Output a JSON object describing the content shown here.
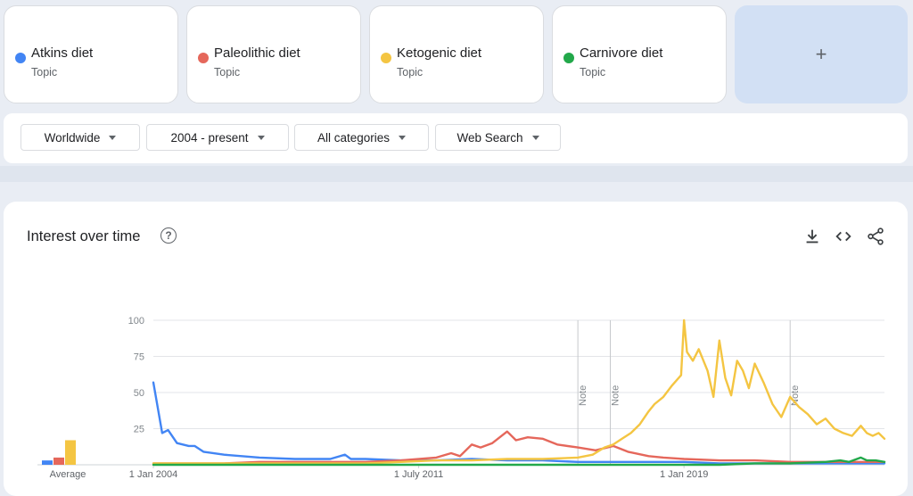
{
  "terms": [
    {
      "name": "Atkins diet",
      "type": "Topic",
      "color": "#4285f4"
    },
    {
      "name": "Paleolithic diet",
      "type": "Topic",
      "color": "#e5675b"
    },
    {
      "name": "Ketogenic diet",
      "type": "Topic",
      "color": "#f4c542"
    },
    {
      "name": "Carnivore diet",
      "type": "Topic",
      "color": "#22a84a"
    }
  ],
  "add_button": "+",
  "filters": {
    "region": "Worldwide",
    "time_range": "2004 - present",
    "category": "All categories",
    "search_type": "Web Search"
  },
  "chart_header": {
    "title": "Interest over time",
    "help_symbol": "?",
    "icons": [
      "download-icon",
      "embed-code-icon",
      "share-icon"
    ]
  },
  "chart_data": {
    "type": "line",
    "title": "Interest over time",
    "xlabel": "",
    "ylabel": "",
    "ylim": [
      0,
      100
    ],
    "y_ticks": [
      25,
      50,
      75,
      100
    ],
    "x_range": [
      "2004-01",
      "2024-09"
    ],
    "x_tick_labels": [
      {
        "date": "2004-01",
        "label": "1 Jan 2004"
      },
      {
        "date": "2011-07",
        "label": "1 July 2011"
      },
      {
        "date": "2019-01",
        "label": "1 Jan 2019"
      }
    ],
    "notes": [
      {
        "date": "2016-01",
        "label": "Note"
      },
      {
        "date": "2016-12",
        "label": "Note"
      },
      {
        "date": "2022-01",
        "label": "Note"
      }
    ],
    "grid": true,
    "average_label": "Average",
    "averages": [
      {
        "name": "Atkins diet",
        "value": 3
      },
      {
        "name": "Paleolithic diet",
        "value": 5
      },
      {
        "name": "Ketogenic diet",
        "value": 17
      },
      {
        "name": "Carnivore diet",
        "value": 0
      }
    ],
    "series": [
      {
        "name": "Atkins diet",
        "color": "#4285f4",
        "points": [
          [
            "2004-01",
            57
          ],
          [
            "2004-04",
            22
          ],
          [
            "2004-06",
            24
          ],
          [
            "2004-09",
            15
          ],
          [
            "2005-01",
            13
          ],
          [
            "2005-03",
            13
          ],
          [
            "2005-06",
            9
          ],
          [
            "2006-01",
            7
          ],
          [
            "2007-01",
            5
          ],
          [
            "2008-01",
            4
          ],
          [
            "2009-01",
            4
          ],
          [
            "2009-06",
            7
          ],
          [
            "2009-08",
            4
          ],
          [
            "2010-01",
            4
          ],
          [
            "2011-01",
            3
          ],
          [
            "2012-01",
            3
          ],
          [
            "2013-01",
            4
          ],
          [
            "2014-01",
            3
          ],
          [
            "2015-01",
            3
          ],
          [
            "2016-01",
            2
          ],
          [
            "2017-01",
            2
          ],
          [
            "2018-01",
            2
          ],
          [
            "2019-01",
            2
          ],
          [
            "2020-01",
            1
          ],
          [
            "2021-01",
            1
          ],
          [
            "2022-01",
            1
          ],
          [
            "2023-01",
            1
          ],
          [
            "2024-01",
            1
          ],
          [
            "2024-09",
            1
          ]
        ]
      },
      {
        "name": "Paleolithic diet",
        "color": "#e5675b",
        "points": [
          [
            "2004-01",
            1
          ],
          [
            "2005-01",
            1
          ],
          [
            "2006-01",
            1
          ],
          [
            "2007-01",
            2
          ],
          [
            "2008-01",
            2
          ],
          [
            "2009-01",
            2
          ],
          [
            "2010-01",
            2
          ],
          [
            "2011-01",
            3
          ],
          [
            "2012-01",
            5
          ],
          [
            "2012-06",
            8
          ],
          [
            "2012-09",
            6
          ],
          [
            "2013-01",
            14
          ],
          [
            "2013-04",
            12
          ],
          [
            "2013-08",
            15
          ],
          [
            "2014-01",
            23
          ],
          [
            "2014-04",
            17
          ],
          [
            "2014-08",
            19
          ],
          [
            "2015-01",
            18
          ],
          [
            "2015-06",
            14
          ],
          [
            "2016-01",
            12
          ],
          [
            "2016-07",
            10
          ],
          [
            "2017-01",
            13
          ],
          [
            "2017-06",
            9
          ],
          [
            "2018-01",
            6
          ],
          [
            "2018-06",
            5
          ],
          [
            "2019-01",
            4
          ],
          [
            "2020-01",
            3
          ],
          [
            "2021-01",
            3
          ],
          [
            "2022-01",
            2
          ],
          [
            "2023-01",
            2
          ],
          [
            "2024-01",
            2
          ],
          [
            "2024-09",
            2
          ]
        ]
      },
      {
        "name": "Ketogenic diet",
        "color": "#f4c542",
        "points": [
          [
            "2004-01",
            1
          ],
          [
            "2006-01",
            1
          ],
          [
            "2008-01",
            1
          ],
          [
            "2010-01",
            1
          ],
          [
            "2011-01",
            2
          ],
          [
            "2012-01",
            3
          ],
          [
            "2013-01",
            3
          ],
          [
            "2014-01",
            4
          ],
          [
            "2015-01",
            4
          ],
          [
            "2016-01",
            5
          ],
          [
            "2016-06",
            7
          ],
          [
            "2016-10",
            12
          ],
          [
            "2017-01",
            14
          ],
          [
            "2017-04",
            18
          ],
          [
            "2017-07",
            22
          ],
          [
            "2017-10",
            28
          ],
          [
            "2018-01",
            37
          ],
          [
            "2018-03",
            42
          ],
          [
            "2018-06",
            47
          ],
          [
            "2018-09",
            55
          ],
          [
            "2018-12",
            62
          ],
          [
            "2019-01",
            100
          ],
          [
            "2019-02",
            78
          ],
          [
            "2019-04",
            72
          ],
          [
            "2019-06",
            80
          ],
          [
            "2019-09",
            65
          ],
          [
            "2019-11",
            47
          ],
          [
            "2020-01",
            86
          ],
          [
            "2020-03",
            60
          ],
          [
            "2020-05",
            48
          ],
          [
            "2020-07",
            72
          ],
          [
            "2020-09",
            65
          ],
          [
            "2020-11",
            53
          ],
          [
            "2021-01",
            70
          ],
          [
            "2021-04",
            57
          ],
          [
            "2021-07",
            42
          ],
          [
            "2021-10",
            33
          ],
          [
            "2022-01",
            47
          ],
          [
            "2022-04",
            40
          ],
          [
            "2022-07",
            35
          ],
          [
            "2022-10",
            28
          ],
          [
            "2023-01",
            32
          ],
          [
            "2023-04",
            25
          ],
          [
            "2023-07",
            22
          ],
          [
            "2023-10",
            20
          ],
          [
            "2024-01",
            27
          ],
          [
            "2024-03",
            22
          ],
          [
            "2024-05",
            20
          ],
          [
            "2024-07",
            22
          ],
          [
            "2024-09",
            18
          ]
        ]
      },
      {
        "name": "Carnivore diet",
        "color": "#22a84a",
        "points": [
          [
            "2004-01",
            0
          ],
          [
            "2010-01",
            0
          ],
          [
            "2015-01",
            0
          ],
          [
            "2018-01",
            0
          ],
          [
            "2019-01",
            0
          ],
          [
            "2020-01",
            0
          ],
          [
            "2021-01",
            1
          ],
          [
            "2022-01",
            1
          ],
          [
            "2023-01",
            2
          ],
          [
            "2023-06",
            3
          ],
          [
            "2023-09",
            2
          ],
          [
            "2024-01",
            5
          ],
          [
            "2024-03",
            3
          ],
          [
            "2024-06",
            3
          ],
          [
            "2024-09",
            2
          ]
        ]
      }
    ]
  }
}
